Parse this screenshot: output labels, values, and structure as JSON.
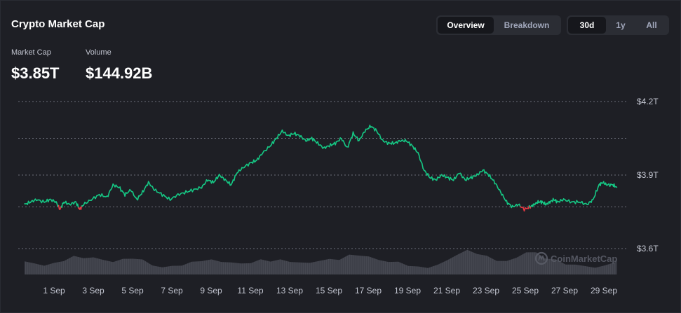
{
  "header": {
    "title": "Crypto Market Cap",
    "view_tabs": [
      {
        "label": "Overview",
        "active": true
      },
      {
        "label": "Breakdown",
        "active": false
      }
    ],
    "range_tabs": [
      {
        "label": "30d",
        "active": true
      },
      {
        "label": "1y",
        "active": false
      },
      {
        "label": "All",
        "active": false
      }
    ]
  },
  "stats": {
    "market_cap_label": "Market Cap",
    "market_cap_value": "$3.85T",
    "volume_label": "Volume",
    "volume_value": "$144.92B"
  },
  "watermark": "CoinMarketCap",
  "colors": {
    "up": "#16c784",
    "down": "#ea3943",
    "volume": "#4a4d56",
    "grid": "#6c6f7a"
  },
  "chart_data": {
    "type": "line",
    "x_tick_labels": [
      "1 Sep",
      "3 Sep",
      "5 Sep",
      "7 Sep",
      "9 Sep",
      "11 Sep",
      "13 Sep",
      "15 Sep",
      "17 Sep",
      "19 Sep",
      "21 Sep",
      "23 Sep",
      "25 Sep",
      "27 Sep",
      "29 Sep"
    ],
    "y_ticks": [
      {
        "value": 4.2,
        "label": "$4.2T"
      },
      {
        "value": 3.9,
        "label": "$3.9T"
      },
      {
        "value": 3.6,
        "label": "$3.6T"
      }
    ],
    "ylim": [
      3.6,
      4.25
    ],
    "xlim": [
      0,
      30.3
    ],
    "baseline": 3.77,
    "grid": true,
    "market_cap_series": {
      "x": [
        0,
        0.3,
        0.6,
        1.0,
        1.3,
        1.6,
        1.8,
        2.0,
        2.3,
        2.6,
        2.8,
        3.0,
        3.4,
        3.8,
        4.2,
        4.5,
        4.8,
        5.1,
        5.4,
        5.7,
        6.0,
        6.3,
        6.6,
        7.0,
        7.4,
        7.8,
        8.2,
        8.6,
        9.0,
        9.3,
        9.6,
        9.9,
        10.2,
        10.5,
        10.8,
        11.1,
        11.5,
        11.8,
        12.1,
        12.5,
        12.8,
        13.1,
        13.4,
        13.7,
        14.0,
        14.3,
        14.6,
        14.9,
        15.2,
        15.5,
        15.8,
        16.1,
        16.4,
        16.7,
        17.0,
        17.3,
        17.6,
        17.9,
        18.2,
        18.5,
        18.8,
        19.1,
        19.4,
        19.7,
        20.0,
        20.3,
        20.6,
        20.9,
        21.2,
        21.5,
        21.8,
        22.1,
        22.4,
        22.7,
        23.0,
        23.3,
        23.6,
        23.9,
        24.2,
        24.5,
        24.8,
        25.1,
        25.4,
        25.7,
        25.9,
        26.1,
        26.3,
        26.5,
        26.7,
        26.9,
        27.1,
        27.4,
        27.8,
        28.2,
        28.6,
        28.9,
        29.2,
        29.4,
        29.6,
        29.9,
        30.1
      ],
      "y": [
        3.78,
        3.79,
        3.8,
        3.79,
        3.8,
        3.79,
        3.76,
        3.79,
        3.78,
        3.79,
        3.76,
        3.78,
        3.8,
        3.82,
        3.81,
        3.86,
        3.85,
        3.82,
        3.84,
        3.8,
        3.83,
        3.87,
        3.84,
        3.82,
        3.8,
        3.82,
        3.83,
        3.84,
        3.85,
        3.88,
        3.87,
        3.9,
        3.88,
        3.86,
        3.91,
        3.93,
        3.95,
        3.96,
        3.99,
        4.02,
        4.05,
        4.08,
        4.06,
        4.07,
        4.06,
        4.04,
        4.05,
        4.03,
        4.01,
        4.02,
        4.03,
        4.05,
        4.01,
        4.07,
        4.04,
        4.08,
        4.1,
        4.08,
        4.04,
        4.03,
        4.03,
        4.04,
        4.04,
        4.02,
        3.99,
        3.92,
        3.89,
        3.88,
        3.9,
        3.89,
        3.88,
        3.91,
        3.88,
        3.89,
        3.9,
        3.92,
        3.9,
        3.87,
        3.83,
        3.79,
        3.77,
        3.78,
        3.76,
        3.77,
        3.78,
        3.79,
        3.79,
        3.78,
        3.79,
        3.8,
        3.79,
        3.8,
        3.79,
        3.79,
        3.78,
        3.8,
        3.86,
        3.87,
        3.86,
        3.86,
        3.85
      ]
    },
    "volume_series": {
      "x": [
        0,
        0.5,
        1.0,
        1.5,
        2.0,
        2.5,
        3.0,
        3.5,
        4.0,
        4.5,
        5.0,
        5.5,
        6.0,
        6.5,
        7.0,
        7.5,
        8.0,
        8.5,
        9.0,
        9.5,
        10.0,
        10.5,
        11.0,
        11.5,
        12.0,
        12.5,
        13.0,
        13.5,
        14.0,
        14.5,
        15.0,
        15.5,
        16.0,
        16.5,
        17.0,
        17.5,
        18.0,
        18.5,
        19.0,
        19.5,
        20.0,
        20.5,
        21.0,
        21.5,
        22.0,
        22.5,
        23.0,
        23.5,
        24.0,
        24.5,
        25.0,
        25.5,
        26.0,
        26.5,
        27.0,
        27.5,
        28.0,
        28.5,
        29.0,
        29.5,
        30.0,
        30.1
      ],
      "relative": [
        0.55,
        0.45,
        0.4,
        0.45,
        0.6,
        0.75,
        0.7,
        0.72,
        0.6,
        0.55,
        0.62,
        0.7,
        0.6,
        0.4,
        0.3,
        0.35,
        0.4,
        0.5,
        0.6,
        0.6,
        0.55,
        0.5,
        0.45,
        0.5,
        0.6,
        0.58,
        0.6,
        0.55,
        0.5,
        0.48,
        0.6,
        0.62,
        0.65,
        0.8,
        0.82,
        0.75,
        0.6,
        0.55,
        0.5,
        0.4,
        0.3,
        0.3,
        0.4,
        0.6,
        0.85,
        1.0,
        0.9,
        0.75,
        0.6,
        0.55,
        0.7,
        0.95,
        0.9,
        0.7,
        0.6,
        0.45,
        0.4,
        0.35,
        0.3,
        0.35,
        0.55,
        0.6
      ]
    }
  }
}
